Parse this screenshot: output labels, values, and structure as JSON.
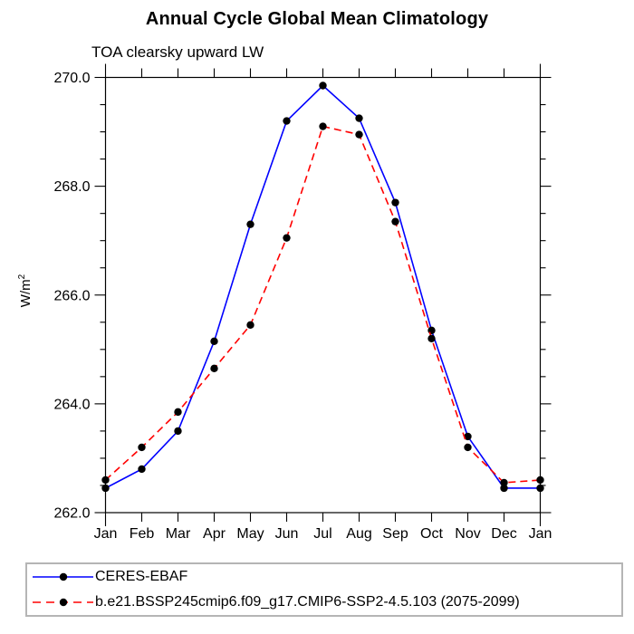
{
  "header": {
    "title": "Annual Cycle Global Mean Climatology",
    "subtitle": "TOA clearsky upward LW"
  },
  "chart_data": {
    "type": "line",
    "title": "Annual Cycle Global Mean Climatology",
    "subtitle": "TOA clearsky upward LW",
    "ylabel": "W/m2",
    "ylabel_base": "W/m",
    "ylabel_sup": "2",
    "categories": [
      "Jan",
      "Feb",
      "Mar",
      "Apr",
      "May",
      "Jun",
      "Jul",
      "Aug",
      "Sep",
      "Oct",
      "Nov",
      "Dec",
      "Jan"
    ],
    "ylim": [
      262.0,
      270.0
    ],
    "ytick_major_labels": [
      "262.0",
      "264.0",
      "266.0",
      "268.0",
      "270.0"
    ],
    "ytick_major_values": [
      262.0,
      264.0,
      266.0,
      268.0,
      270.0
    ],
    "ytick_minor_step": 0.5,
    "grid": false,
    "legend_position": "bottom-left-box",
    "marker": "filled-circle",
    "marker_color": "#000000",
    "series": [
      {
        "name": "CERES-EBAF",
        "color": "#0000ff",
        "line_style": "solid",
        "values": [
          262.45,
          262.8,
          263.5,
          265.15,
          267.3,
          269.2,
          269.85,
          269.25,
          267.7,
          265.35,
          263.4,
          262.45,
          262.45
        ]
      },
      {
        "name": "b.e21.BSSP245cmip6.f09_g17.CMIP6-SSP2-4.5.103 (2075-2099)",
        "color": "#ff0000",
        "line_style": "dashed",
        "values": [
          262.6,
          263.2,
          263.85,
          264.65,
          265.45,
          267.05,
          269.1,
          268.95,
          267.35,
          265.2,
          263.2,
          262.55,
          262.6
        ]
      }
    ]
  }
}
